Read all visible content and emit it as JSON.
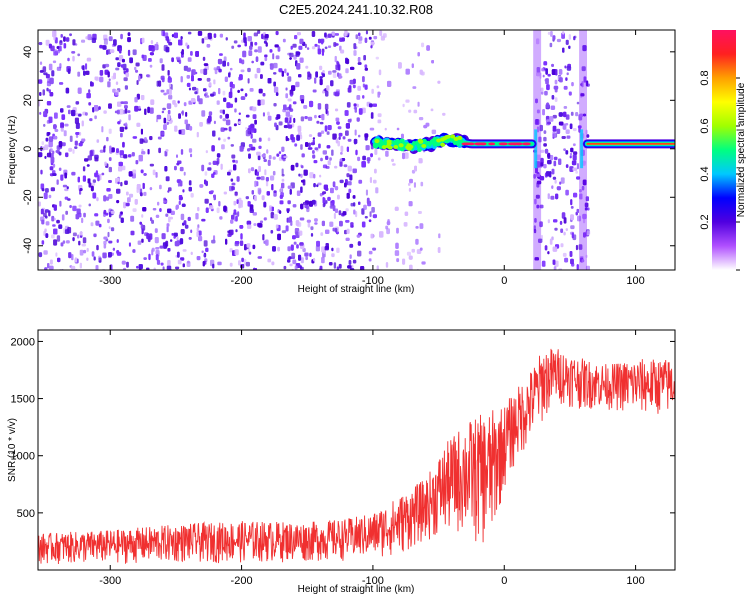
{
  "title": "C2E5.2024.241.10.32.R08",
  "colorbar_label": "Normalized spectral amplitude",
  "chart_data": [
    {
      "type": "heatmap",
      "xlabel": "Height of straight line (km)",
      "ylabel": "Frequency (Hz)",
      "xlim": [
        -355,
        130
      ],
      "ylim": [
        -50,
        49
      ],
      "x_ticks": [
        -300,
        -200,
        -100,
        0,
        100
      ],
      "y_ticks": [
        -40,
        -20,
        0,
        20,
        40
      ],
      "grid": false,
      "colorbar": {
        "range": [
          0,
          1
        ],
        "ticks": [
          "0.2",
          "0.4",
          "0.6",
          "0.8"
        ],
        "colors": [
          "#ffffff",
          "#b050ff",
          "#5000e0",
          "#0000ff",
          "#00c8ff",
          "#00ff80",
          "#a0ff00",
          "#ffff00",
          "#ffa000",
          "#ff2020",
          "#ff1060"
        ]
      },
      "regions": [
        {
          "x": [
            -355,
            -100
          ],
          "pattern": "broadband noise",
          "amplitude": 0.1
        },
        {
          "x": [
            -100,
            -30
          ],
          "pattern": "sparse noise plus narrow band near 3 Hz",
          "amplitude": 0.45
        },
        {
          "x": [
            -30,
            22
          ],
          "pattern": "narrow band near 2 Hz",
          "amplitude": 0.85
        },
        {
          "x": [
            22,
            28
          ],
          "pattern": "vertical broadband stripe",
          "amplitude": 0.3
        },
        {
          "x": [
            28,
            57
          ],
          "pattern": "broadband noise",
          "amplitude": 0.1
        },
        {
          "x": [
            57,
            63
          ],
          "pattern": "vertical broadband stripe",
          "amplitude": 0.3
        },
        {
          "x": [
            63,
            130
          ],
          "pattern": "narrow band near 2 Hz",
          "amplitude": 0.85
        }
      ],
      "band_centers": {
        "x": [
          -100,
          -85,
          -70,
          -55,
          -45,
          -35,
          -25,
          -15,
          0,
          15,
          22,
          65,
          80,
          100,
          130
        ],
        "y": [
          3,
          2,
          1,
          2,
          4,
          3,
          2,
          2,
          2,
          2,
          2,
          2,
          2,
          2,
          2
        ]
      }
    },
    {
      "type": "line",
      "xlabel": "Height of straight line (km)",
      "ylabel": "SNR (10 * v/v)",
      "xlim": [
        -355,
        130
      ],
      "ylim": [
        0,
        2100
      ],
      "x_ticks": [
        -300,
        -200,
        -100,
        0,
        100
      ],
      "y_ticks": [
        500,
        1000,
        1500,
        2000
      ],
      "grid": false,
      "series": [
        {
          "color": "#f03030",
          "envelope": {
            "x": [
              -355,
              -300,
              -250,
              -200,
              -150,
              -120,
              -100,
              -80,
              -60,
              -45,
              -30,
              -20,
              -10,
              0,
              10,
              20,
              30,
              40,
              60,
              80,
              100,
              130
            ],
            "low": [
              50,
              50,
              60,
              60,
              70,
              80,
              100,
              120,
              250,
              300,
              300,
              200,
              200,
              700,
              950,
              1100,
              1300,
              1450,
              1400,
              1400,
              1350,
              1350
            ],
            "high": [
              320,
              350,
              400,
              430,
              420,
              450,
              500,
              650,
              800,
              1100,
              1300,
              1350,
              1400,
              1450,
              1600,
              1750,
              1950,
              1950,
              1850,
              1800,
              1850,
              1850
            ]
          }
        }
      ]
    }
  ]
}
